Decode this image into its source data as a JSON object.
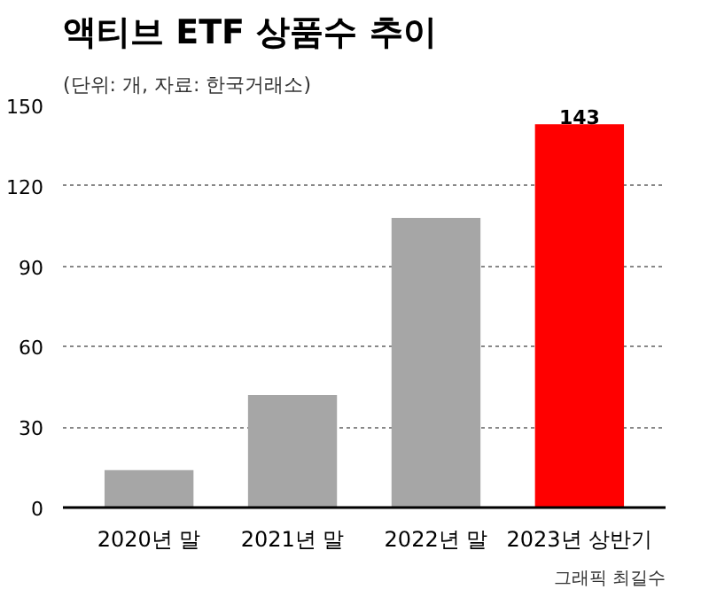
{
  "chart_data": {
    "type": "bar",
    "title": "액티브 ETF 상품수 추이",
    "subtitle": "(단위: 개, 자료: 한국거래소)",
    "categories": [
      "2020년 말",
      "2021년 말",
      "2022년 말",
      "2023년 상반기"
    ],
    "values": [
      14,
      42,
      108,
      143
    ],
    "colors": [
      "#a6a6a6",
      "#a6a6a6",
      "#a6a6a6",
      "#ff0000"
    ],
    "value_labels": [
      null,
      null,
      null,
      "143"
    ],
    "ylim": [
      0,
      150
    ],
    "yticks": [
      0,
      30,
      60,
      90,
      120,
      150
    ],
    "grid": "y",
    "annotations": [
      "그래픽 최길수"
    ]
  }
}
